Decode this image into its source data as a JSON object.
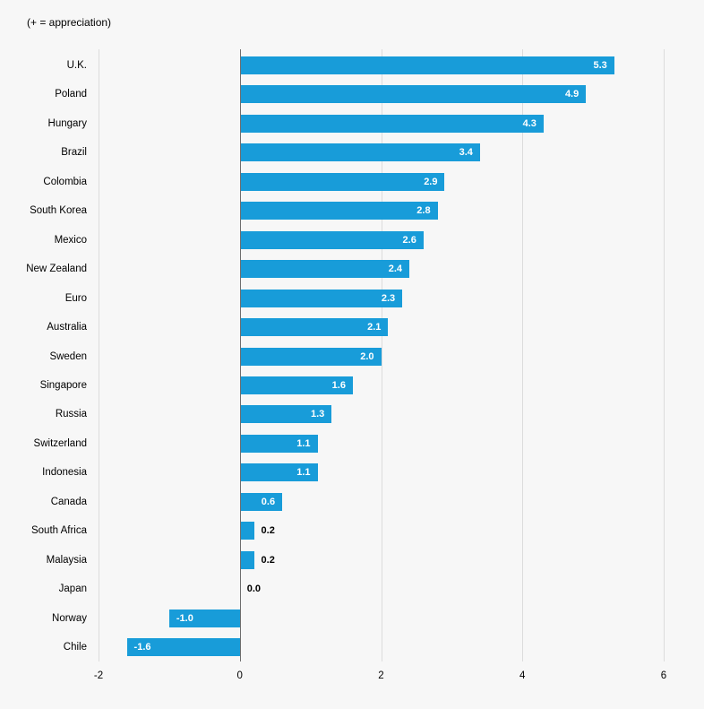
{
  "note": "(+ = appreciation)",
  "chart_data": {
    "type": "bar",
    "orientation": "horizontal",
    "title": "",
    "xlabel": "",
    "ylabel": "",
    "annotation": "(+ = appreciation)",
    "categories": [
      "U.K.",
      "Poland",
      "Hungary",
      "Brazil",
      "Colombia",
      "South Korea",
      "Mexico",
      "New Zealand",
      "Euro",
      "Australia",
      "Sweden",
      "Singapore",
      "Russia",
      "Switzerland",
      "Indonesia",
      "Canada",
      "South Africa",
      "Malaysia",
      "Japan",
      "Norway",
      "Chile"
    ],
    "values": [
      5.3,
      4.9,
      4.3,
      3.4,
      2.9,
      2.8,
      2.6,
      2.4,
      2.3,
      2.1,
      2.0,
      1.6,
      1.3,
      1.1,
      1.1,
      0.6,
      0.2,
      0.2,
      0.0,
      -1.0,
      -1.6
    ],
    "xlim": [
      -2,
      6
    ],
    "xticks": [
      -2,
      0,
      2,
      4,
      6
    ],
    "grid": "vertical",
    "legend": "none",
    "bar_color": "#189cd9",
    "label_color_inside": "#ffffff",
    "label_color_outside": "#000000",
    "gridline_color": "#dcdcdc",
    "zero_line_color": "#6e6e6e",
    "background_color": "#f7f7f7"
  }
}
